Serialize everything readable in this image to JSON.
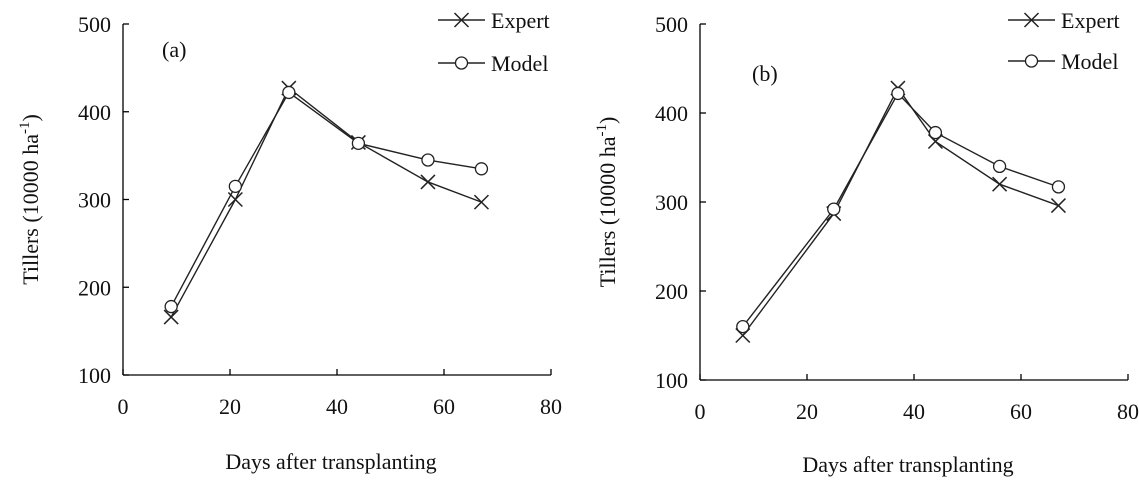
{
  "chart_data": [
    {
      "type": "line",
      "panel_label": "(a)",
      "xlabel": "Days after transplanting",
      "ylabel": "Tillers (10000 ha",
      "ylabel_superscript": "-1",
      "ylabel_close": ")",
      "xlim": [
        0,
        80
      ],
      "ylim": [
        100,
        500
      ],
      "xticks": [
        0,
        20,
        40,
        60,
        80
      ],
      "yticks": [
        100,
        200,
        300,
        400,
        500
      ],
      "legend_position": "top-right",
      "series": [
        {
          "name": "Expert",
          "marker": "x",
          "x": [
            9,
            21,
            31,
            44,
            57,
            67
          ],
          "y": [
            166,
            300,
            427,
            365,
            320,
            297
          ]
        },
        {
          "name": "Model",
          "marker": "circle",
          "x": [
            9,
            21,
            31,
            44,
            57,
            67
          ],
          "y": [
            178,
            315,
            422,
            364,
            345,
            335
          ]
        }
      ]
    },
    {
      "type": "line",
      "panel_label": "(b)",
      "xlabel": "Days after transplanting",
      "ylabel": "Tillers (10000 ha",
      "ylabel_superscript": "-1",
      "ylabel_close": ")",
      "xlim": [
        0,
        80
      ],
      "ylim": [
        100,
        500
      ],
      "xticks": [
        0,
        20,
        40,
        60,
        80
      ],
      "yticks": [
        100,
        200,
        300,
        400,
        500
      ],
      "legend_position": "top-right",
      "series": [
        {
          "name": "Expert",
          "marker": "x",
          "x": [
            8,
            25,
            37,
            44,
            56,
            67
          ],
          "y": [
            150,
            287,
            428,
            368,
            320,
            296
          ]
        },
        {
          "name": "Model",
          "marker": "circle",
          "x": [
            8,
            25,
            37,
            44,
            56,
            67
          ],
          "y": [
            160,
            292,
            422,
            378,
            340,
            317
          ]
        }
      ]
    }
  ]
}
